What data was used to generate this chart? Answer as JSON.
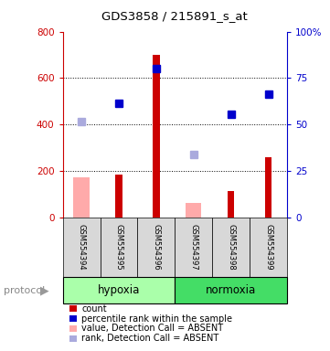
{
  "title": "GDS3858 / 215891_s_at",
  "samples": [
    "GSM554394",
    "GSM554395",
    "GSM554396",
    "GSM554397",
    "GSM554398",
    "GSM554399"
  ],
  "red_bars": [
    null,
    185,
    700,
    null,
    115,
    260
  ],
  "pink_bars": [
    175,
    null,
    null,
    65,
    null,
    null
  ],
  "blue_dots_left_scale": [
    null,
    490,
    640,
    null,
    445,
    530
  ],
  "purple_dots_left_scale": [
    415,
    null,
    null,
    270,
    null,
    null
  ],
  "ylim_left": [
    0,
    800
  ],
  "ylim_right": [
    0,
    100
  ],
  "left_ticks": [
    0,
    200,
    400,
    600,
    800
  ],
  "right_tick_labels": [
    "0",
    "25",
    "50",
    "75",
    "100%"
  ],
  "right_ticks": [
    0,
    25,
    50,
    75,
    100
  ],
  "left_color": "#cc0000",
  "right_color": "#0000cc",
  "red_bar_color": "#cc0000",
  "pink_bar_color": "#ffaaaa",
  "blue_dot_color": "#0000cc",
  "purple_dot_color": "#aaaadd",
  "hypoxia_color": "#aaffaa",
  "normoxia_color": "#44dd66",
  "sample_box_color": "#d8d8d8",
  "background_color": "#ffffff",
  "group_label": "protocol",
  "hypoxia_label": "hypoxia",
  "normoxia_label": "normoxia",
  "legend_items": [
    [
      "#cc0000",
      "count"
    ],
    [
      "#0000cc",
      "percentile rank within the sample"
    ],
    [
      "#ffaaaa",
      "value, Detection Call = ABSENT"
    ],
    [
      "#aaaadd",
      "rank, Detection Call = ABSENT"
    ]
  ],
  "figsize": [
    3.61,
    3.84
  ],
  "dpi": 100
}
